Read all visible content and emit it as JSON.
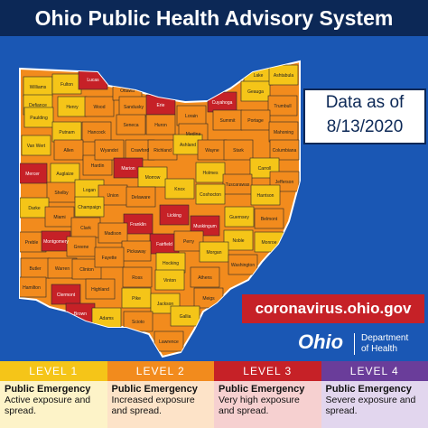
{
  "header": {
    "title": "Ohio Public Health Advisory System"
  },
  "date_box": {
    "label": "Data as of",
    "date": "8/13/2020"
  },
  "url": "coronavirus.ohio.gov",
  "logo": {
    "word": "Ohio",
    "dept_line1": "Department",
    "dept_line2": "of Health"
  },
  "counties": [
    {
      "name": "Williams",
      "color": "#f5c518"
    },
    {
      "name": "Fulton",
      "color": "#f5c518"
    },
    {
      "name": "Lucas",
      "color": "#c62127"
    },
    {
      "name": "Defiance",
      "color": "#f5c518"
    },
    {
      "name": "Henry",
      "color": "#f5c518"
    },
    {
      "name": "Wood",
      "color": "#f28b1d"
    },
    {
      "name": "Ottawa",
      "color": "#f28b1d"
    },
    {
      "name": "Sandusky",
      "color": "#f28b1d"
    },
    {
      "name": "Erie",
      "color": "#c62127"
    },
    {
      "name": "Lorain",
      "color": "#f28b1d"
    },
    {
      "name": "Cuyahoga",
      "color": "#c62127"
    },
    {
      "name": "Lake",
      "color": "#f5c518"
    },
    {
      "name": "Geauga",
      "color": "#f5c518"
    },
    {
      "name": "Ashtabula",
      "color": "#f5c518"
    },
    {
      "name": "Trumbull",
      "color": "#f28b1d"
    },
    {
      "name": "Paulding",
      "color": "#f5c518"
    },
    {
      "name": "Putnam",
      "color": "#f5c518"
    },
    {
      "name": "Hancock",
      "color": "#f28b1d"
    },
    {
      "name": "Seneca",
      "color": "#f28b1d"
    },
    {
      "name": "Huron",
      "color": "#f28b1d"
    },
    {
      "name": "Medina",
      "color": "#f28b1d"
    },
    {
      "name": "Summit",
      "color": "#f28b1d"
    },
    {
      "name": "Portage",
      "color": "#f28b1d"
    },
    {
      "name": "Van Wert",
      "color": "#f5c518"
    },
    {
      "name": "Allen",
      "color": "#f28b1d"
    },
    {
      "name": "Hardin",
      "color": "#f28b1d"
    },
    {
      "name": "Wyandot",
      "color": "#f28b1d"
    },
    {
      "name": "Crawford",
      "color": "#f28b1d"
    },
    {
      "name": "Richland",
      "color": "#f28b1d"
    },
    {
      "name": "Ashland",
      "color": "#f5c518"
    },
    {
      "name": "Wayne",
      "color": "#f28b1d"
    },
    {
      "name": "Stark",
      "color": "#f28b1d"
    },
    {
      "name": "Mahoning",
      "color": "#f28b1d"
    },
    {
      "name": "Columbiana",
      "color": "#f28b1d"
    },
    {
      "name": "Mercer",
      "color": "#c62127"
    },
    {
      "name": "Auglaize",
      "color": "#f5c518"
    },
    {
      "name": "Marion",
      "color": "#c62127"
    },
    {
      "name": "Morrow",
      "color": "#f5c518"
    },
    {
      "name": "Knox",
      "color": "#f5c518"
    },
    {
      "name": "Holmes",
      "color": "#f5c518"
    },
    {
      "name": "Carroll",
      "color": "#f5c518"
    },
    {
      "name": "Tuscarawas",
      "color": "#f28b1d"
    },
    {
      "name": "Jefferson",
      "color": "#f28b1d"
    },
    {
      "name": "Shelby",
      "color": "#f28b1d"
    },
    {
      "name": "Logan",
      "color": "#f5c518"
    },
    {
      "name": "Union",
      "color": "#f28b1d"
    },
    {
      "name": "Delaware",
      "color": "#f28b1d"
    },
    {
      "name": "Coshocton",
      "color": "#f5c518"
    },
    {
      "name": "Harrison",
      "color": "#f5c518"
    },
    {
      "name": "Darke",
      "color": "#f5c518"
    },
    {
      "name": "Champaign",
      "color": "#f5c518"
    },
    {
      "name": "Miami",
      "color": "#f28b1d"
    },
    {
      "name": "Licking",
      "color": "#c62127"
    },
    {
      "name": "Guernsey",
      "color": "#f5c518"
    },
    {
      "name": "Belmont",
      "color": "#f28b1d"
    },
    {
      "name": "Clark",
      "color": "#f28b1d"
    },
    {
      "name": "Franklin",
      "color": "#c62127"
    },
    {
      "name": "Muskingum",
      "color": "#c62127"
    },
    {
      "name": "Preble",
      "color": "#f28b1d"
    },
    {
      "name": "Montgomery",
      "color": "#c62127"
    },
    {
      "name": "Madison",
      "color": "#f28b1d"
    },
    {
      "name": "Fairfield",
      "color": "#c62127"
    },
    {
      "name": "Perry",
      "color": "#f28b1d"
    },
    {
      "name": "Noble",
      "color": "#f5c518"
    },
    {
      "name": "Monroe",
      "color": "#f5c518"
    },
    {
      "name": "Greene",
      "color": "#f28b1d"
    },
    {
      "name": "Pickaway",
      "color": "#f28b1d"
    },
    {
      "name": "Morgan",
      "color": "#f5c518"
    },
    {
      "name": "Butler",
      "color": "#f28b1d"
    },
    {
      "name": "Warren",
      "color": "#f28b1d"
    },
    {
      "name": "Clinton",
      "color": "#f28b1d"
    },
    {
      "name": "Fayette",
      "color": "#f28b1d"
    },
    {
      "name": "Hocking",
      "color": "#f5c518"
    },
    {
      "name": "Washington",
      "color": "#f28b1d"
    },
    {
      "name": "Hamilton",
      "color": "#f28b1d"
    },
    {
      "name": "Clermont",
      "color": "#c62127"
    },
    {
      "name": "Highland",
      "color": "#f28b1d"
    },
    {
      "name": "Ross",
      "color": "#f28b1d"
    },
    {
      "name": "Vinton",
      "color": "#f5c518"
    },
    {
      "name": "Athens",
      "color": "#f28b1d"
    },
    {
      "name": "Brown",
      "color": "#c62127"
    },
    {
      "name": "Adams",
      "color": "#f5c518"
    },
    {
      "name": "Pike",
      "color": "#f5c518"
    },
    {
      "name": "Jackson",
      "color": "#f5c518"
    },
    {
      "name": "Meigs",
      "color": "#f28b1d"
    },
    {
      "name": "Scioto",
      "color": "#f28b1d"
    },
    {
      "name": "Gallia",
      "color": "#f5c518"
    },
    {
      "name": "Lawrence",
      "color": "#f28b1d"
    }
  ],
  "levels": [
    {
      "label": "LEVEL 1",
      "heading": "Public Emergency",
      "text": "Active exposure and spread.",
      "color": "#f5c518",
      "tint": "#fdf3c8"
    },
    {
      "label": "LEVEL 2",
      "heading": "Public Emergency",
      "text": "Increased exposure and spread.",
      "color": "#f28b1d",
      "tint": "#fde3c8"
    },
    {
      "label": "LEVEL 3",
      "heading": "Public Emergency",
      "text": "Very high exposure and spread.",
      "color": "#c62127",
      "tint": "#f6d0d0"
    },
    {
      "label": "LEVEL 4",
      "heading": "Public Emergency",
      "text": "Severe exposure and spread.",
      "color": "#6a3d9a",
      "tint": "#e2d6ee"
    }
  ]
}
